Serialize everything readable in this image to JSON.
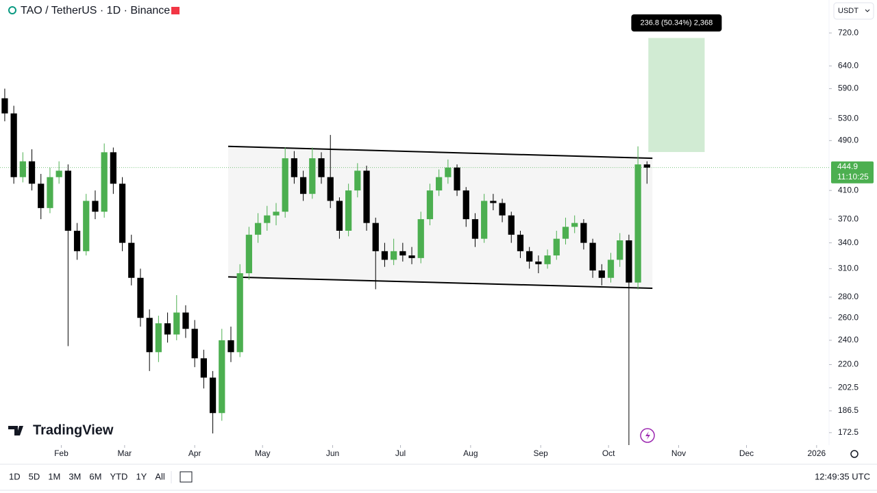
{
  "header": {
    "symbol": "TAO / TetherUS · 1D · Binance",
    "currency": "USDT"
  },
  "brand": "TradingView",
  "chart_data": {
    "type": "candlestick",
    "x": [
      6,
      10,
      14,
      18,
      22,
      26,
      30,
      34,
      38,
      42,
      46,
      50,
      54,
      58,
      62,
      66,
      70,
      74,
      78,
      82,
      86,
      90,
      94,
      98,
      102,
      106,
      110,
      114,
      118,
      122,
      126,
      130,
      134,
      138,
      142,
      146,
      150,
      154,
      158,
      162,
      166,
      170,
      174,
      178,
      182,
      186,
      190,
      194,
      198,
      202,
      206,
      210,
      214,
      218,
      222,
      226,
      230,
      234,
      238,
      242,
      246,
      250,
      254,
      258,
      262,
      266,
      270,
      274,
      278,
      282,
      286,
      290
    ],
    "open": [
      570,
      540,
      430,
      455,
      420,
      385,
      430,
      440,
      355,
      330,
      395,
      380,
      470,
      420,
      340,
      300,
      260,
      230,
      255,
      245,
      265,
      250,
      225,
      210,
      185,
      240,
      230,
      305,
      350,
      365,
      375,
      380,
      460,
      430,
      405,
      460,
      430,
      395,
      355,
      410,
      440,
      365,
      330,
      320,
      330,
      325,
      322,
      370,
      410,
      430,
      445,
      410,
      370,
      345,
      395,
      392,
      375,
      350,
      330,
      318,
      315,
      325,
      345,
      360,
      365,
      340,
      308,
      300,
      320,
      343,
      295,
      450
    ],
    "high": [
      590,
      555,
      470,
      475,
      435,
      445,
      455,
      450,
      365,
      405,
      410,
      485,
      478,
      430,
      350,
      310,
      268,
      262,
      265,
      282,
      272,
      258,
      232,
      215,
      250,
      252,
      315,
      360,
      378,
      388,
      392,
      478,
      472,
      440,
      478,
      470,
      500,
      400,
      420,
      452,
      448,
      372,
      340,
      345,
      340,
      335,
      380,
      420,
      442,
      458,
      450,
      415,
      378,
      405,
      405,
      398,
      380,
      355,
      335,
      325,
      332,
      355,
      372,
      375,
      370,
      345,
      315,
      328,
      352,
      350,
      480,
      455
    ],
    "low": [
      525,
      420,
      422,
      410,
      370,
      378,
      420,
      235,
      320,
      325,
      370,
      372,
      405,
      330,
      292,
      252,
      215,
      222,
      238,
      240,
      242,
      218,
      202,
      172,
      180,
      222,
      226,
      298,
      340,
      355,
      362,
      372,
      420,
      395,
      398,
      420,
      385,
      345,
      348,
      400,
      355,
      288,
      312,
      314,
      318,
      315,
      316,
      362,
      402,
      420,
      402,
      360,
      335,
      340,
      382,
      366,
      340,
      322,
      310,
      305,
      310,
      320,
      338,
      352,
      332,
      300,
      292,
      295,
      312,
      165,
      288,
      420
    ],
    "close": [
      540,
      430,
      455,
      420,
      385,
      430,
      440,
      355,
      330,
      395,
      380,
      470,
      420,
      340,
      300,
      260,
      230,
      255,
      245,
      265,
      250,
      225,
      210,
      185,
      240,
      230,
      305,
      350,
      365,
      375,
      380,
      460,
      430,
      405,
      460,
      430,
      395,
      355,
      410,
      440,
      365,
      330,
      320,
      330,
      325,
      322,
      370,
      410,
      430,
      445,
      410,
      370,
      345,
      395,
      392,
      375,
      350,
      330,
      318,
      315,
      325,
      345,
      360,
      365,
      340,
      308,
      300,
      320,
      343,
      295,
      450,
      444.9
    ],
    "up_color": "#4caf50",
    "down_color": "#000000",
    "log_scale": true,
    "xlim": [
      3.9,
      370.5
    ],
    "ylim": [
      165,
      810
    ],
    "xticks": [
      {
        "value": 31,
        "label": "Feb"
      },
      {
        "value": 59,
        "label": "Mar"
      },
      {
        "value": 90,
        "label": "Apr"
      },
      {
        "value": 120,
        "label": "May"
      },
      {
        "value": 151,
        "label": "Jun"
      },
      {
        "value": 181,
        "label": "Jul"
      },
      {
        "value": 212,
        "label": "Aug"
      },
      {
        "value": 243,
        "label": "Sep"
      },
      {
        "value": 273,
        "label": "Oct"
      },
      {
        "value": 304,
        "label": "Nov"
      },
      {
        "value": 334,
        "label": "Dec"
      },
      {
        "value": 365,
        "label": "2026"
      }
    ],
    "yticks": [
      {
        "value": 720,
        "label": "720.0"
      },
      {
        "value": 640,
        "label": "640.0"
      },
      {
        "value": 590,
        "label": "590.0"
      },
      {
        "value": 530,
        "label": "530.0"
      },
      {
        "value": 490,
        "label": "490.0"
      },
      {
        "value": 410,
        "label": "410.0"
      },
      {
        "value": 370,
        "label": "370.0"
      },
      {
        "value": 340,
        "label": "340.0"
      },
      {
        "value": 310,
        "label": "310.0"
      },
      {
        "value": 280,
        "label": "280.0"
      },
      {
        "value": 260,
        "label": "260.0"
      },
      {
        "value": 240,
        "label": "240.0"
      },
      {
        "value": 220,
        "label": "220.0"
      },
      {
        "value": 202.5,
        "label": "202.5"
      },
      {
        "value": 186.5,
        "label": "186.5"
      },
      {
        "value": 172.5,
        "label": "172.5"
      }
    ],
    "current_price": 444.9,
    "countdown": "11:10:25",
    "channel": {
      "x": [
        104.8,
        292.4
      ],
      "upper": [
        480,
        460
      ],
      "lower": [
        301,
        289
      ]
    },
    "measure": {
      "x": [
        290.6,
        315.5
      ],
      "low": 470.4,
      "high": 707.2,
      "label": "236.8 (50.34%) 2,368"
    }
  },
  "toolbar": {
    "ranges": [
      "1D",
      "5D",
      "1M",
      "3M",
      "6M",
      "YTD",
      "1Y",
      "All"
    ],
    "clock": "12:49:35 UTC"
  }
}
